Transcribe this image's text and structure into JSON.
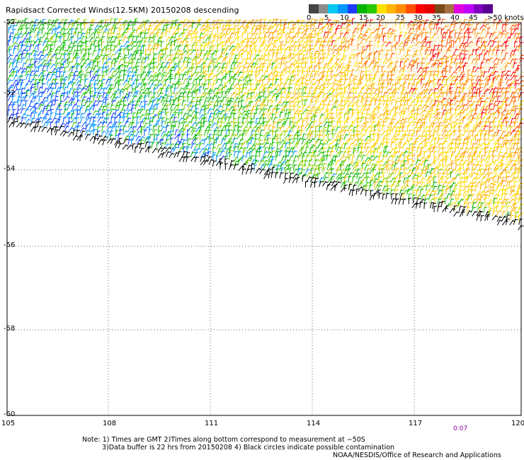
{
  "title": "Rapidsact Corrected Winds(12.5KM) 20150208 descending",
  "legend": {
    "colors": [
      "#444444",
      "#8c8c8c",
      "#00c8f0",
      "#0096ff",
      "#1e3cff",
      "#00b400",
      "#28c800",
      "#ffe000",
      "#ffb400",
      "#ff8c00",
      "#ff5000",
      "#ff0000",
      "#e00000",
      "#7a4a1a",
      "#a87040",
      "#e000e0",
      "#c000ff",
      "#8000c0",
      "#5a0090"
    ],
    "labels": [
      "0",
      "5",
      "10",
      "15",
      "20",
      "25",
      "30",
      "35",
      "40",
      "45",
      ">50 knots"
    ]
  },
  "axes": {
    "lat_labels": [
      "-52",
      "-52",
      "-54",
      "-56",
      "-58",
      "-60"
    ],
    "lon_labels": [
      "105",
      "108",
      "111",
      "114",
      "117",
      "120"
    ]
  },
  "time_label": "0:07",
  "notes": [
    "Note: 1) Times are GMT 2)Times along bottom correspond to measurement at −50S",
    "3)Data buffer is 22 hrs from 20150208 4) Black circles indicate possible contamination"
  ],
  "credit": "NOAA/NESDIS/Office of Research and Applications"
}
